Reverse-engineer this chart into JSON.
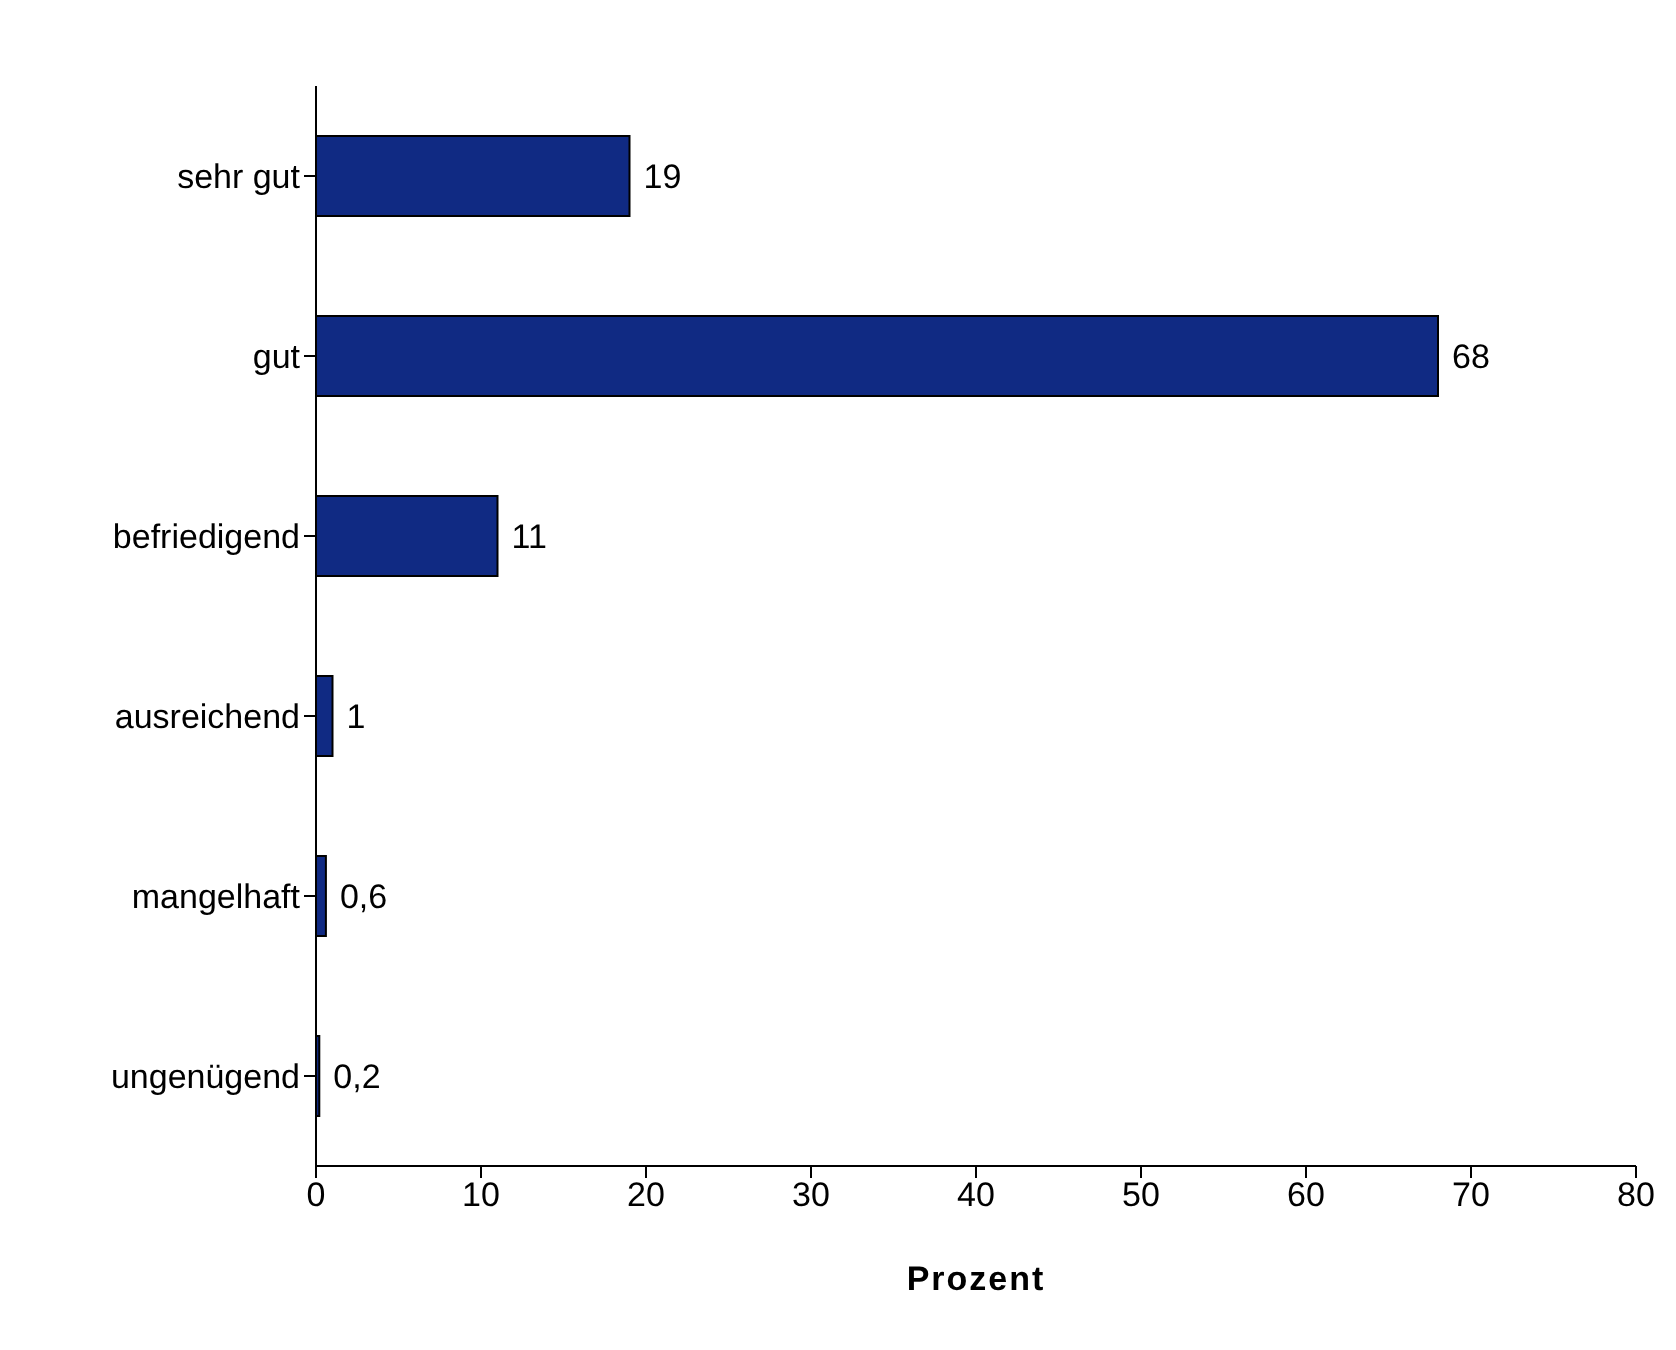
{
  "chart_data": {
    "type": "bar",
    "orientation": "horizontal",
    "xlabel": "Prozent",
    "categories": [
      "sehr gut",
      "gut",
      "befriedigend",
      "ausreichend",
      "mangelhaft",
      "ungenügend"
    ],
    "values": [
      19,
      68,
      11,
      1,
      0.6,
      0.2
    ],
    "value_labels": [
      "19",
      "68",
      "11",
      "1",
      "0,6",
      "0,2"
    ],
    "color": "#102a83",
    "xlim": [
      0,
      80
    ],
    "xticks": [
      0,
      10,
      20,
      30,
      40,
      50,
      60,
      70,
      80
    ],
    "grid": false,
    "legend": false
  }
}
